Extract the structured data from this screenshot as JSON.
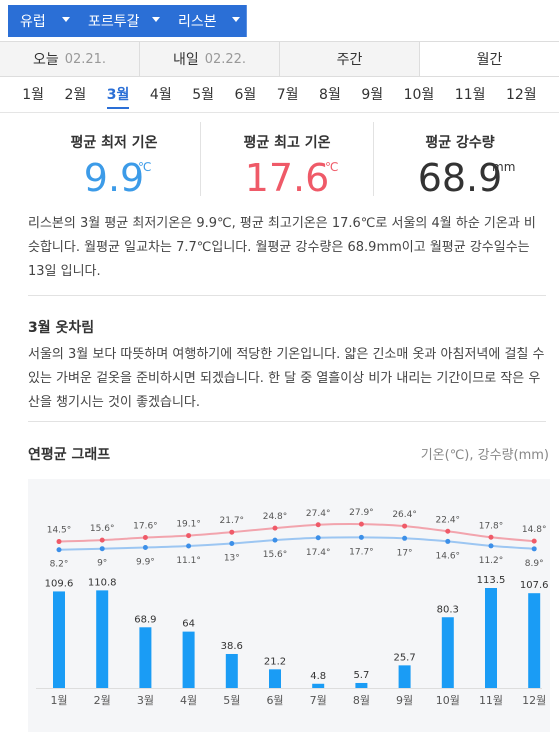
{
  "breadcrumb": {
    "items": [
      {
        "label": "유럽"
      },
      {
        "label": "포르투갈"
      },
      {
        "label": "리스본"
      }
    ]
  },
  "tabs": [
    {
      "label": "오늘",
      "date": "02.21."
    },
    {
      "label": "내일",
      "date": "02.22."
    },
    {
      "label": "주간",
      "date": ""
    },
    {
      "label": "월간",
      "date": ""
    }
  ],
  "months": [
    "1월",
    "2월",
    "3월",
    "4월",
    "5월",
    "6월",
    "7월",
    "8월",
    "9월",
    "10월",
    "11월",
    "12월"
  ],
  "selected_month": "3월",
  "stats": {
    "min": {
      "label": "평균 최저 기온",
      "value": "9.9",
      "unit": "℃",
      "color": "#3c9be8"
    },
    "max": {
      "label": "평균 최고 기온",
      "value": "17.6",
      "unit": "℃",
      "color": "#ef5a68"
    },
    "rain": {
      "label": "평균 강수량",
      "value": "68.9",
      "unit": "mm",
      "color": "#333333"
    }
  },
  "description": "리스본의 3월 평균 최저기온은 9.9℃, 평균 최고기온은 17.6℃로 서울의 4월 하순 기온과 비슷합니다. 월평균 일교차는 7.7℃입니다. 월평균 강수량은 68.9mm이고 월평균 강수일수는 13일 입니다.",
  "outfit": {
    "title": "3월 옷차림",
    "text": "서울의 3월 보다 따뜻하며 여행하기에 적당한 기온입니다. 얇은 긴소매 옷과 아침저녁에 걸칠 수 있는 가벼운 겉옷을 준비하시면 되겠습니다. 한 달 중 열흘이상 비가 내리는 기간이므로 작은 우산을 챙기시는 것이 좋겠습니다."
  },
  "graph": {
    "title": "연평균 그래프",
    "units": "기온(℃), 강수량(mm)"
  },
  "chart_data": {
    "type": "line+bar",
    "categories": [
      "1월",
      "2월",
      "3월",
      "4월",
      "5월",
      "6월",
      "7월",
      "8월",
      "9월",
      "10월",
      "11월",
      "12월"
    ],
    "series": [
      {
        "values": [
          14.5,
          15.6,
          17.6,
          19.1,
          21.7,
          24.8,
          27.4,
          27.9,
          26.4,
          22.4,
          17.8,
          14.8
        ],
        "labels": [
          "14.5°",
          "15.6°",
          "17.6°",
          "19.1°",
          "21.7°",
          "24.8°",
          "27.4°",
          "27.9°",
          "26.4°",
          "22.4°",
          "17.8°",
          "14.8°"
        ],
        "color": "#ef5a68"
      },
      {
        "values": [
          8.2,
          9,
          9.9,
          11.1,
          13,
          15.6,
          17.4,
          17.7,
          17,
          14.6,
          11.2,
          8.9
        ],
        "labels": [
          "8.2°",
          "9°",
          "9.9°",
          "11.1°",
          "13°",
          "15.6°",
          "17.4°",
          "17.7°",
          "17°",
          "14.6°",
          "11.2°",
          "8.9°"
        ],
        "color": "#3c8fe8"
      },
      {
        "values": [
          109.6,
          110.8,
          68.9,
          64,
          38.6,
          21.2,
          4.8,
          5.7,
          25.7,
          80.3,
          113.5,
          107.6
        ],
        "labels": [
          "109.6",
          "110.8",
          "68.9",
          "64",
          "38.6",
          "21.2",
          "4.8",
          "5.7",
          "25.7",
          "80.3",
          "113.5",
          "107.6"
        ],
        "color": "#1a9cf5"
      }
    ]
  }
}
